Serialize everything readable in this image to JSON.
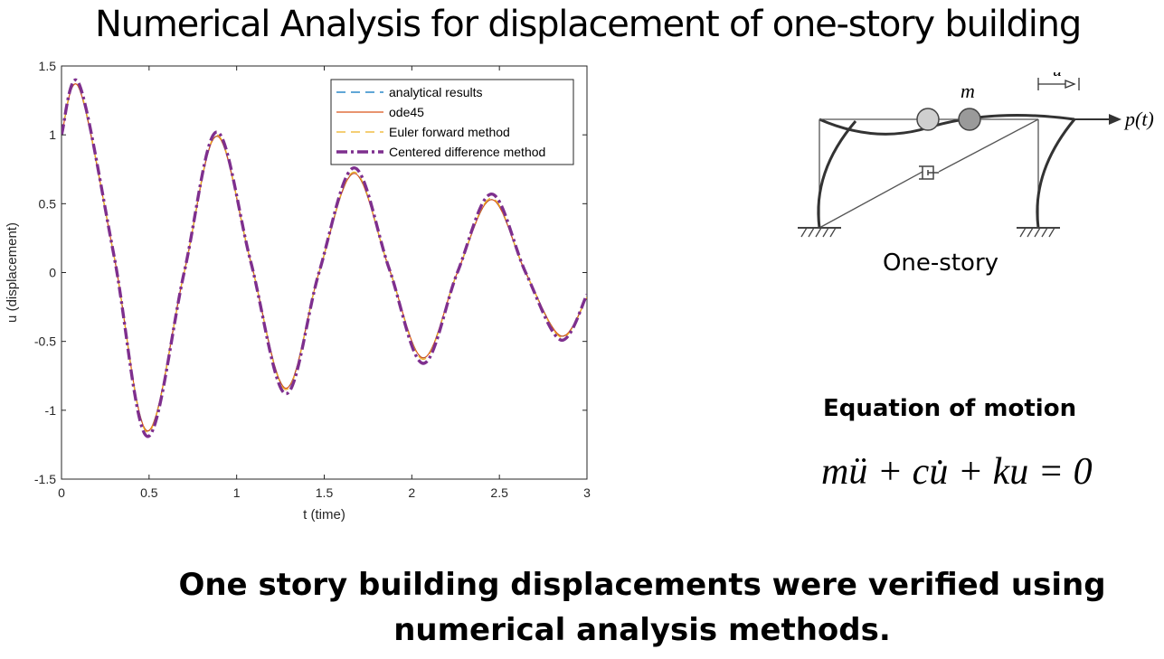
{
  "slide": {
    "title": "Numerical Analysis for displacement of one-story building",
    "conclusion_line1": "One story building displacements were verified using",
    "conclusion_line2": "numerical analysis methods."
  },
  "diagram": {
    "caption": "One-story",
    "mass_label": "m",
    "disp_label": "u",
    "force_label": "p(t)"
  },
  "equation": {
    "heading": "Equation of motion",
    "formula": "mü + cu̇ + ku = 0"
  },
  "chart_data": {
    "type": "line",
    "title": "",
    "xlabel": "t (time)",
    "ylabel": "u (displacement)",
    "xlim": [
      0,
      3
    ],
    "ylim": [
      -1.5,
      1.5
    ],
    "xticks": [
      "0",
      "0.5",
      "1",
      "1.5",
      "2",
      "2.5",
      "3"
    ],
    "yticks": [
      "-1.5",
      "-1",
      "-0.5",
      "0",
      "0.5",
      "1",
      "1.5"
    ],
    "grid": false,
    "legend_position": "top-right",
    "x": [
      0,
      0.1,
      0.3,
      0.49,
      0.7,
      0.885,
      1.08,
      1.28,
      1.47,
      1.67,
      1.87,
      2.065,
      2.26,
      2.455,
      2.65,
      2.85,
      3.0
    ],
    "series": [
      {
        "name": "analytical results",
        "color": "#0072bd",
        "style": "dashed",
        "values": [
          1.0,
          1.34,
          0.12,
          -1.15,
          0.0,
          0.99,
          0.08,
          -0.84,
          0.0,
          0.72,
          0.03,
          -0.62,
          0.0,
          0.53,
          0.0,
          -0.46,
          -0.18
        ]
      },
      {
        "name": "ode45",
        "color": "#d95319",
        "style": "solid",
        "values": [
          1.0,
          1.34,
          0.12,
          -1.15,
          0.0,
          0.99,
          0.08,
          -0.84,
          0.0,
          0.72,
          0.03,
          -0.62,
          0.0,
          0.53,
          0.0,
          -0.46,
          -0.18
        ]
      },
      {
        "name": "Euler forward method",
        "color": "#edb120",
        "style": "dashed",
        "values": [
          1.0,
          1.35,
          0.12,
          -1.16,
          0.0,
          1.0,
          0.08,
          -0.85,
          0.0,
          0.73,
          0.03,
          -0.63,
          0.0,
          0.54,
          0.0,
          -0.47,
          -0.18
        ]
      },
      {
        "name": "Centered difference method",
        "color": "#7e2f8e",
        "style": "dashdot",
        "values": [
          1.0,
          1.37,
          0.12,
          -1.19,
          0.0,
          1.02,
          0.08,
          -0.88,
          0.0,
          0.76,
          0.03,
          -0.66,
          0.0,
          0.57,
          0.0,
          -0.49,
          -0.16
        ]
      }
    ]
  }
}
